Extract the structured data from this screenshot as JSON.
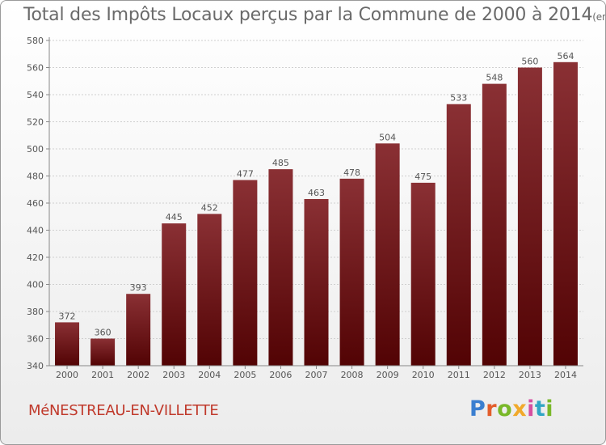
{
  "chart_data": {
    "type": "bar",
    "title": "Total des Impôts Locaux perçus par la Commune de 2000 à 2014",
    "title_unit": "(en milliers d'€)",
    "categories": [
      "2000",
      "2001",
      "2002",
      "2003",
      "2004",
      "2005",
      "2006",
      "2007",
      "2008",
      "2009",
      "2010",
      "2011",
      "2012",
      "2013",
      "2014"
    ],
    "values": [
      372,
      360,
      393,
      445,
      452,
      477,
      485,
      463,
      478,
      504,
      475,
      533,
      548,
      560,
      564
    ],
    "ylim": [
      340,
      580
    ],
    "yticks": [
      340,
      360,
      380,
      400,
      420,
      440,
      460,
      480,
      500,
      520,
      540,
      560,
      580
    ],
    "grid": true,
    "xlabel": "",
    "ylabel": "",
    "bar_color_top": "#8a3034",
    "bar_color_bottom": "#520304"
  },
  "footer": {
    "commune": "MéNESTREAU-EN-VILLETTE",
    "logo": [
      "P",
      "r",
      "o",
      "x",
      "i",
      "t",
      "i"
    ]
  }
}
